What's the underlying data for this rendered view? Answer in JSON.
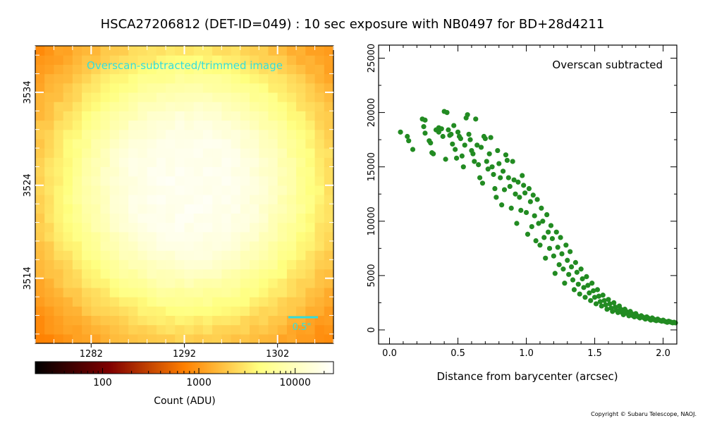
{
  "figure": {
    "title": "HSCA27206812 (DET-ID=049) :  10 sec exposure with NB0497 for BD+28d4211",
    "copyright": "Copyright © Subaru Telescope, NAOJ."
  },
  "chart_data": [
    {
      "type": "heatmap",
      "annotation": "Overscan-subtracted/trimmed image",
      "scale_bar_label": "0.5\"",
      "xticks": [
        "1282",
        "1292",
        "1302"
      ],
      "yticks": [
        "3534",
        "3524",
        "3514"
      ],
      "xtick_values": [
        1282,
        1292,
        1302
      ],
      "ytick_values": [
        3534,
        3524,
        3514
      ],
      "xlim": [
        1276,
        1308
      ],
      "ylim": [
        3507,
        3539
      ],
      "source": {
        "center_x": 1292.5,
        "center_y": 3523.8,
        "peak_adu": 20000,
        "background_adu": 150
      },
      "colormap": "afmhot",
      "colorbar": {
        "label": "Count (ADU)",
        "scale": "log",
        "range": [
          20,
          25000
        ],
        "ticks": [
          "100",
          "1000",
          "10000"
        ],
        "tick_values": [
          100,
          1000,
          10000
        ]
      }
    },
    {
      "type": "scatter",
      "annotation": "Overscan subtracted",
      "xlabel": "Distance from barycenter (arcsec)",
      "ylabel": "",
      "xlim": [
        -0.08,
        2.1
      ],
      "ylim": [
        -1300,
        26200
      ],
      "xticks": [
        "0.0",
        "0.5",
        "1.0",
        "1.5",
        "2.0"
      ],
      "xtick_values": [
        0.0,
        0.5,
        1.0,
        1.5,
        2.0
      ],
      "yticks": [
        "0",
        "5000",
        "10000",
        "15000",
        "20000",
        "25000"
      ],
      "ytick_values": [
        0,
        5000,
        10000,
        15000,
        20000,
        25000
      ],
      "marker_color": "#228b22",
      "profile_model": {
        "peak": 19000,
        "half_radius_arcsec": 1.15,
        "width": 0.18
      },
      "points": [
        [
          0.08,
          18200
        ],
        [
          0.13,
          17800
        ],
        [
          0.14,
          17400
        ],
        [
          0.17,
          16600
        ],
        [
          0.24,
          19400
        ],
        [
          0.25,
          18700
        ],
        [
          0.26,
          18100
        ],
        [
          0.26,
          19300
        ],
        [
          0.29,
          17400
        ],
        [
          0.3,
          17200
        ],
        [
          0.31,
          16300
        ],
        [
          0.32,
          16200
        ],
        [
          0.34,
          18400
        ],
        [
          0.36,
          18200
        ],
        [
          0.36,
          18600
        ],
        [
          0.38,
          18500
        ],
        [
          0.39,
          17800
        ],
        [
          0.4,
          20100
        ],
        [
          0.41,
          15700
        ],
        [
          0.42,
          20000
        ],
        [
          0.43,
          18400
        ],
        [
          0.44,
          17900
        ],
        [
          0.45,
          18000
        ],
        [
          0.46,
          17100
        ],
        [
          0.47,
          18800
        ],
        [
          0.48,
          16600
        ],
        [
          0.49,
          15800
        ],
        [
          0.5,
          18200
        ],
        [
          0.51,
          17800
        ],
        [
          0.52,
          17600
        ],
        [
          0.53,
          16000
        ],
        [
          0.54,
          15000
        ],
        [
          0.55,
          17000
        ],
        [
          0.56,
          19500
        ],
        [
          0.57,
          19800
        ],
        [
          0.58,
          18000
        ],
        [
          0.59,
          17500
        ],
        [
          0.6,
          16500
        ],
        [
          0.61,
          16200
        ],
        [
          0.62,
          15500
        ],
        [
          0.63,
          19400
        ],
        [
          0.64,
          17000
        ],
        [
          0.65,
          15200
        ],
        [
          0.66,
          14000
        ],
        [
          0.67,
          16800
        ],
        [
          0.68,
          13500
        ],
        [
          0.69,
          17800
        ],
        [
          0.7,
          17600
        ],
        [
          0.71,
          15500
        ],
        [
          0.72,
          14800
        ],
        [
          0.73,
          16200
        ],
        [
          0.74,
          17700
        ],
        [
          0.75,
          15000
        ],
        [
          0.76,
          14300
        ],
        [
          0.77,
          13000
        ],
        [
          0.78,
          12200
        ],
        [
          0.79,
          16500
        ],
        [
          0.8,
          15300
        ],
        [
          0.81,
          14000
        ],
        [
          0.82,
          11500
        ],
        [
          0.83,
          14600
        ],
        [
          0.84,
          12900
        ],
        [
          0.85,
          16100
        ],
        [
          0.86,
          15600
        ],
        [
          0.87,
          14000
        ],
        [
          0.88,
          13200
        ],
        [
          0.89,
          11200
        ],
        [
          0.9,
          15500
        ],
        [
          0.91,
          13800
        ],
        [
          0.92,
          12500
        ],
        [
          0.93,
          9800
        ],
        [
          0.94,
          13600
        ],
        [
          0.95,
          12200
        ],
        [
          0.96,
          11000
        ],
        [
          0.97,
          14200
        ],
        [
          0.98,
          13300
        ],
        [
          0.99,
          12600
        ],
        [
          1.0,
          10800
        ],
        [
          1.01,
          8800
        ],
        [
          1.02,
          13000
        ],
        [
          1.03,
          11800
        ],
        [
          1.04,
          9500
        ],
        [
          1.05,
          12400
        ],
        [
          1.06,
          10500
        ],
        [
          1.07,
          8200
        ],
        [
          1.08,
          12000
        ],
        [
          1.09,
          9800
        ],
        [
          1.1,
          7800
        ],
        [
          1.11,
          11200
        ],
        [
          1.12,
          10000
        ],
        [
          1.13,
          8500
        ],
        [
          1.14,
          6600
        ],
        [
          1.15,
          10600
        ],
        [
          1.16,
          9000
        ],
        [
          1.17,
          7500
        ],
        [
          1.18,
          9600
        ],
        [
          1.19,
          8400
        ],
        [
          1.2,
          6800
        ],
        [
          1.21,
          5200
        ],
        [
          1.22,
          9000
        ],
        [
          1.23,
          7600
        ],
        [
          1.24,
          6000
        ],
        [
          1.25,
          8500
        ],
        [
          1.26,
          7000
        ],
        [
          1.27,
          5600
        ],
        [
          1.28,
          4300
        ],
        [
          1.29,
          7800
        ],
        [
          1.3,
          6400
        ],
        [
          1.31,
          5100
        ],
        [
          1.32,
          7200
        ],
        [
          1.33,
          5800
        ],
        [
          1.34,
          4600
        ],
        [
          1.35,
          3700
        ],
        [
          1.36,
          6200
        ],
        [
          1.37,
          5300
        ],
        [
          1.38,
          4200
        ],
        [
          1.39,
          3300
        ],
        [
          1.4,
          5600
        ],
        [
          1.41,
          4700
        ],
        [
          1.42,
          3900
        ],
        [
          1.43,
          3000
        ],
        [
          1.44,
          4900
        ],
        [
          1.45,
          4100
        ],
        [
          1.46,
          3400
        ],
        [
          1.47,
          2700
        ],
        [
          1.48,
          4300
        ],
        [
          1.49,
          3600
        ],
        [
          1.5,
          3000
        ],
        [
          1.51,
          2400
        ],
        [
          1.52,
          3700
        ],
        [
          1.53,
          3100
        ],
        [
          1.54,
          2600
        ],
        [
          1.55,
          2200
        ],
        [
          1.56,
          3200
        ],
        [
          1.57,
          2700
        ],
        [
          1.58,
          2300
        ],
        [
          1.59,
          1900
        ],
        [
          1.6,
          2800
        ],
        [
          1.61,
          2400
        ],
        [
          1.62,
          2000
        ],
        [
          1.63,
          1700
        ],
        [
          1.64,
          2500
        ],
        [
          1.65,
          2100
        ],
        [
          1.66,
          1800
        ],
        [
          1.67,
          1600
        ],
        [
          1.68,
          2200
        ],
        [
          1.69,
          1900
        ],
        [
          1.7,
          1600
        ],
        [
          1.71,
          1400
        ],
        [
          1.72,
          1900
        ],
        [
          1.73,
          1700
        ],
        [
          1.74,
          1500
        ],
        [
          1.75,
          1300
        ],
        [
          1.76,
          1700
        ],
        [
          1.77,
          1500
        ],
        [
          1.78,
          1300
        ],
        [
          1.79,
          1200
        ],
        [
          1.8,
          1500
        ],
        [
          1.81,
          1300
        ],
        [
          1.82,
          1200
        ],
        [
          1.83,
          1100
        ],
        [
          1.84,
          1300
        ],
        [
          1.85,
          1200
        ],
        [
          1.86,
          1100
        ],
        [
          1.87,
          1000
        ],
        [
          1.88,
          1200
        ],
        [
          1.89,
          1100
        ],
        [
          1.9,
          1000
        ],
        [
          1.91,
          900
        ],
        [
          1.92,
          1100
        ],
        [
          1.93,
          1000
        ],
        [
          1.94,
          900
        ],
        [
          1.95,
          850
        ],
        [
          1.96,
          1000
        ],
        [
          1.97,
          900
        ],
        [
          1.98,
          850
        ],
        [
          1.99,
          800
        ],
        [
          2.0,
          900
        ],
        [
          2.01,
          800
        ],
        [
          2.02,
          750
        ],
        [
          2.03,
          700
        ],
        [
          2.04,
          800
        ],
        [
          2.05,
          750
        ],
        [
          2.06,
          700
        ],
        [
          2.07,
          650
        ],
        [
          2.08,
          700
        ],
        [
          2.09,
          650
        ]
      ]
    }
  ]
}
